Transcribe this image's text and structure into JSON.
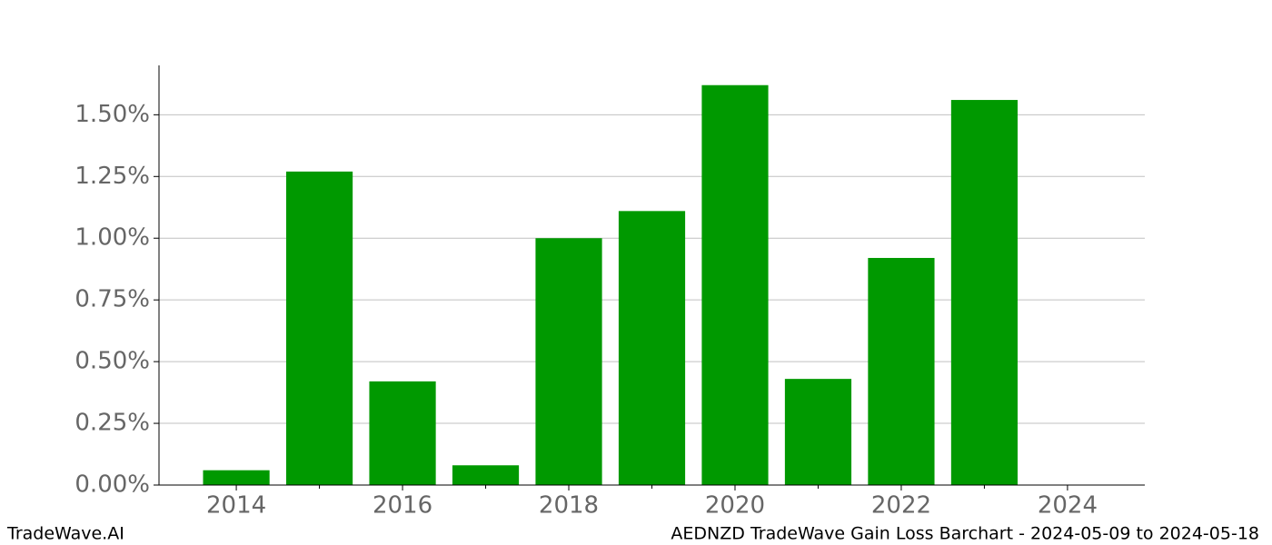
{
  "chart_data": {
    "type": "bar",
    "title": "AEDNZD TradeWave Gain Loss Barchart - 2024-05-09 to 2024-05-18",
    "source": "TradeWave.AI",
    "x": [
      2014,
      2015,
      2016,
      2017,
      2018,
      2019,
      2020,
      2021,
      2022,
      2023
    ],
    "values": [
      0.06,
      1.27,
      0.42,
      0.08,
      1.0,
      1.11,
      1.62,
      0.43,
      0.92,
      1.56
    ],
    "bar_width": 0.8,
    "color": "#009900",
    "xlim": [
      2013.07,
      2024.93
    ],
    "xticks": [
      2014,
      2016,
      2018,
      2020,
      2022,
      2024
    ],
    "xticks_minor": [
      2015,
      2017,
      2019,
      2021,
      2023
    ],
    "ylim": [
      0,
      1.7
    ],
    "yticks": [
      {
        "value": 0,
        "label": "0.00%"
      },
      {
        "value": 0.25,
        "label": "0.25%"
      },
      {
        "value": 0.5,
        "label": "0.50%"
      },
      {
        "value": 0.75,
        "label": "0.75%"
      },
      {
        "value": 1.0,
        "label": "1.00%"
      },
      {
        "value": 1.25,
        "label": "1.25%"
      },
      {
        "value": 1.5,
        "label": "1.50%"
      }
    ],
    "grid": true
  }
}
